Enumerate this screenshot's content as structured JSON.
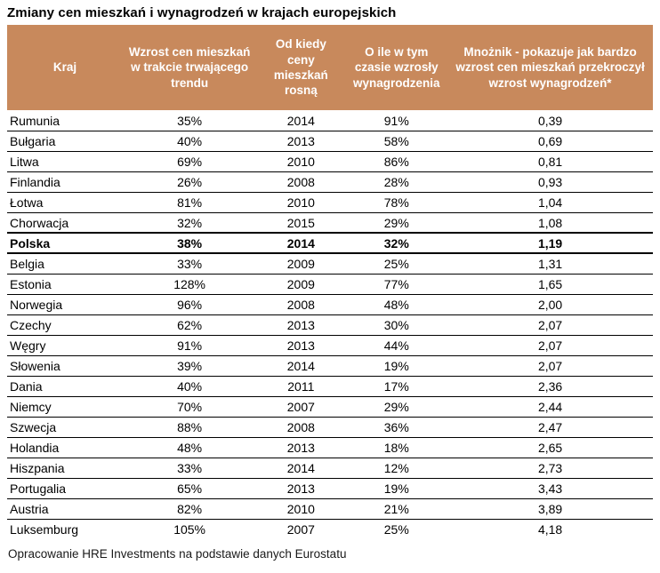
{
  "title": "Zmiany cen mieszkań i wynagrodzeń w krajach europejskich",
  "footer": "Opracowanie HRE Investments na podstawie danych Eurostatu",
  "colors": {
    "header_bg": "#C8895C",
    "header_text": "#FFFFFF",
    "row_border": "#000000",
    "body_text": "#000000"
  },
  "chart_data": {
    "type": "table",
    "title": "Zmiany cen mieszkań i wynagrodzeń w krajach europejskich",
    "columns": [
      "Kraj",
      "Wzrost cen mieszkań w trakcie trwającego trendu",
      "Od kiedy ceny mieszkań rosną",
      "O ile w tym czasie wzrosły wynagrodzenia",
      "Mnożnik - pokazuje jak bardzo wzrost cen mieszkań przekroczył wzrost wynagrodzeń*"
    ],
    "highlight_row_index": 6,
    "highlight_row_label": "Polska",
    "rows": [
      [
        "Rumunia",
        "35%",
        "2014",
        "91%",
        "0,39"
      ],
      [
        "Bułgaria",
        "40%",
        "2013",
        "58%",
        "0,69"
      ],
      [
        "Litwa",
        "69%",
        "2010",
        "86%",
        "0,81"
      ],
      [
        "Finlandia",
        "26%",
        "2008",
        "28%",
        "0,93"
      ],
      [
        "Łotwa",
        "81%",
        "2010",
        "78%",
        "1,04"
      ],
      [
        "Chorwacja",
        "32%",
        "2015",
        "29%",
        "1,08"
      ],
      [
        "Polska",
        "38%",
        "2014",
        "32%",
        "1,19"
      ],
      [
        "Belgia",
        "33%",
        "2009",
        "25%",
        "1,31"
      ],
      [
        "Estonia",
        "128%",
        "2009",
        "77%",
        "1,65"
      ],
      [
        "Norwegia",
        "96%",
        "2008",
        "48%",
        "2,00"
      ],
      [
        "Czechy",
        "62%",
        "2013",
        "30%",
        "2,07"
      ],
      [
        "Węgry",
        "91%",
        "2013",
        "44%",
        "2,07"
      ],
      [
        "Słowenia",
        "39%",
        "2014",
        "19%",
        "2,07"
      ],
      [
        "Dania",
        "40%",
        "2011",
        "17%",
        "2,36"
      ],
      [
        "Niemcy",
        "70%",
        "2007",
        "29%",
        "2,44"
      ],
      [
        "Szwecja",
        "88%",
        "2008",
        "36%",
        "2,47"
      ],
      [
        "Holandia",
        "48%",
        "2013",
        "18%",
        "2,65"
      ],
      [
        "Hiszpania",
        "33%",
        "2014",
        "12%",
        "2,73"
      ],
      [
        "Portugalia",
        "65%",
        "2013",
        "19%",
        "3,43"
      ],
      [
        "Austria",
        "82%",
        "2010",
        "21%",
        "3,89"
      ],
      [
        "Luksemburg",
        "105%",
        "2007",
        "25%",
        "4,18"
      ]
    ]
  }
}
